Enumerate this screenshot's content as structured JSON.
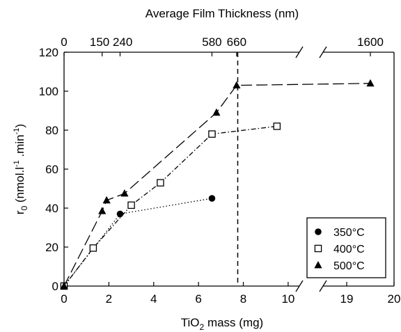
{
  "chart_data": {
    "type": "line",
    "xlabel": "TiO",
    "xlabel_sub": "2",
    "xlabel_rest": " mass (mg)",
    "ylabel_parts": [
      "r",
      "0",
      " (nmol.l",
      "-1",
      " .min",
      "-1",
      ")"
    ],
    "top_axis_title": "Average Film Thickness (nm)",
    "x_ticks": [
      {
        "value": 0,
        "label": "0"
      },
      {
        "value": 2,
        "label": "2"
      },
      {
        "value": 4,
        "label": "4"
      },
      {
        "value": 6,
        "label": "6"
      },
      {
        "value": 8,
        "label": "8"
      },
      {
        "value": 10,
        "label": "10"
      },
      {
        "value": 19,
        "label": "19"
      },
      {
        "value": 20,
        "label": "20"
      }
    ],
    "top_ticks": [
      {
        "value": 0,
        "label": "0"
      },
      {
        "value": 1.7,
        "label": "150"
      },
      {
        "value": 2.5,
        "label": ""
      },
      {
        "value": 6.6,
        "label": ""
      },
      {
        "value": 7.7,
        "label": "660"
      },
      {
        "value": 19.5,
        "label": "1600"
      }
    ],
    "top_tick_group_label": "150 240",
    "top_tick_label_580": "580",
    "y_ticks": [
      0,
      20,
      40,
      60,
      80,
      100,
      120
    ],
    "ylim": [
      0,
      120
    ],
    "x_break": {
      "lower_end": 10.5,
      "upper_start": 18.5
    },
    "vline_x": 7.75,
    "series": [
      {
        "name": "350°C",
        "marker": "circle",
        "line": "dotted",
        "x": [
          0,
          2.5,
          6.6
        ],
        "y": [
          0,
          37,
          45
        ]
      },
      {
        "name": "400°C",
        "marker": "square-open",
        "line": "dashdot",
        "x": [
          0,
          1.3,
          3.0,
          4.3,
          6.6,
          9.5
        ],
        "y": [
          0,
          19.5,
          41.5,
          53,
          78,
          82
        ]
      },
      {
        "name": "500°C",
        "marker": "triangle",
        "line": "longdash",
        "x": [
          0,
          1.7,
          1.9,
          2.7,
          6.8,
          7.7,
          19.5
        ],
        "y": [
          0,
          38.5,
          44,
          47.5,
          89,
          103,
          104
        ]
      }
    ],
    "legend_position": "bottom-right",
    "grid": false
  }
}
